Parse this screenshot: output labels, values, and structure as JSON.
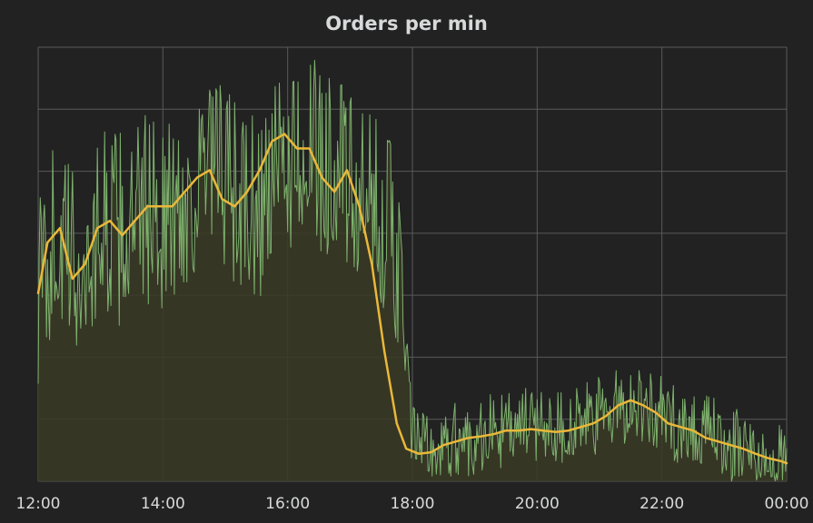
{
  "panel": {
    "title": "Orders per min"
  },
  "colors": {
    "background": "#222222",
    "grid": "#5a5a5a",
    "raw_series": "#7eb26d",
    "raw_fill": "#3a3a26",
    "smoothed_series": "#eab839",
    "tick_text": "#d8d9da"
  },
  "chart_data": {
    "type": "line",
    "title": "Orders per min",
    "xlabel": "",
    "ylabel": "",
    "x_ticks": [
      "12:00",
      "14:00",
      "16:00",
      "18:00",
      "20:00",
      "22:00",
      "00:00"
    ],
    "y_ticks_labels": [],
    "ylim": [
      0,
      6
    ],
    "grid": true,
    "legend": "none",
    "series": [
      {
        "style": "raw (noisy, filled area)",
        "color": "#7eb26d",
        "x_hours": [
          12.0,
          12.25,
          12.5,
          12.75,
          13.0,
          13.25,
          13.5,
          13.75,
          14.0,
          14.25,
          14.5,
          14.75,
          15.0,
          15.25,
          15.5,
          15.75,
          16.0,
          16.25,
          16.5,
          16.75,
          17.0,
          17.25,
          17.5,
          17.75,
          18.0,
          18.25,
          18.5,
          18.75,
          19.0,
          19.25,
          19.5,
          19.75,
          20.0,
          20.25,
          20.5,
          20.75,
          21.0,
          21.25,
          21.5,
          21.75,
          22.0,
          22.25,
          22.5,
          22.75,
          23.0,
          23.25,
          23.5,
          23.75,
          24.0
        ],
        "values": [
          2.6,
          3.4,
          3.1,
          2.8,
          3.6,
          3.5,
          3.4,
          3.8,
          3.7,
          3.7,
          4.0,
          4.3,
          4.2,
          3.8,
          3.7,
          4.1,
          4.4,
          4.7,
          4.4,
          4.5,
          4.0,
          3.7,
          3.8,
          3.2,
          0.6,
          0.4,
          0.4,
          0.6,
          0.6,
          0.7,
          0.7,
          0.75,
          0.8,
          0.8,
          0.75,
          0.8,
          0.9,
          1.0,
          1.1,
          1.05,
          0.9,
          0.8,
          0.75,
          0.65,
          0.55,
          0.45,
          0.35,
          0.25,
          0.2
        ]
      },
      {
        "style": "smoothed line",
        "color": "#eab839",
        "x_hours": [
          12.0,
          12.15,
          12.35,
          12.55,
          12.75,
          12.95,
          13.15,
          13.35,
          13.55,
          13.75,
          13.95,
          14.15,
          14.35,
          14.55,
          14.75,
          14.95,
          15.15,
          15.35,
          15.55,
          15.75,
          15.95,
          16.15,
          16.35,
          16.55,
          16.75,
          16.95,
          17.15,
          17.35,
          17.55,
          17.75,
          17.9,
          18.1,
          18.3,
          18.5,
          18.7,
          18.9,
          19.1,
          19.3,
          19.5,
          19.7,
          19.9,
          20.1,
          20.3,
          20.5,
          20.7,
          20.9,
          21.1,
          21.3,
          21.5,
          21.7,
          21.9,
          22.1,
          22.3,
          22.5,
          22.7,
          22.9,
          23.1,
          23.3,
          23.5,
          23.7,
          23.9,
          24.0
        ],
        "values": [
          2.6,
          3.3,
          3.5,
          2.8,
          3.0,
          3.5,
          3.6,
          3.4,
          3.6,
          3.8,
          3.8,
          3.8,
          4.0,
          4.2,
          4.3,
          3.9,
          3.8,
          4.0,
          4.3,
          4.7,
          4.8,
          4.6,
          4.6,
          4.2,
          4.0,
          4.3,
          3.8,
          3.0,
          1.8,
          0.8,
          0.45,
          0.38,
          0.4,
          0.5,
          0.55,
          0.6,
          0.62,
          0.65,
          0.7,
          0.7,
          0.72,
          0.7,
          0.68,
          0.7,
          0.75,
          0.8,
          0.9,
          1.05,
          1.12,
          1.05,
          0.95,
          0.8,
          0.75,
          0.7,
          0.6,
          0.55,
          0.5,
          0.45,
          0.38,
          0.32,
          0.28,
          0.25
        ]
      }
    ]
  }
}
